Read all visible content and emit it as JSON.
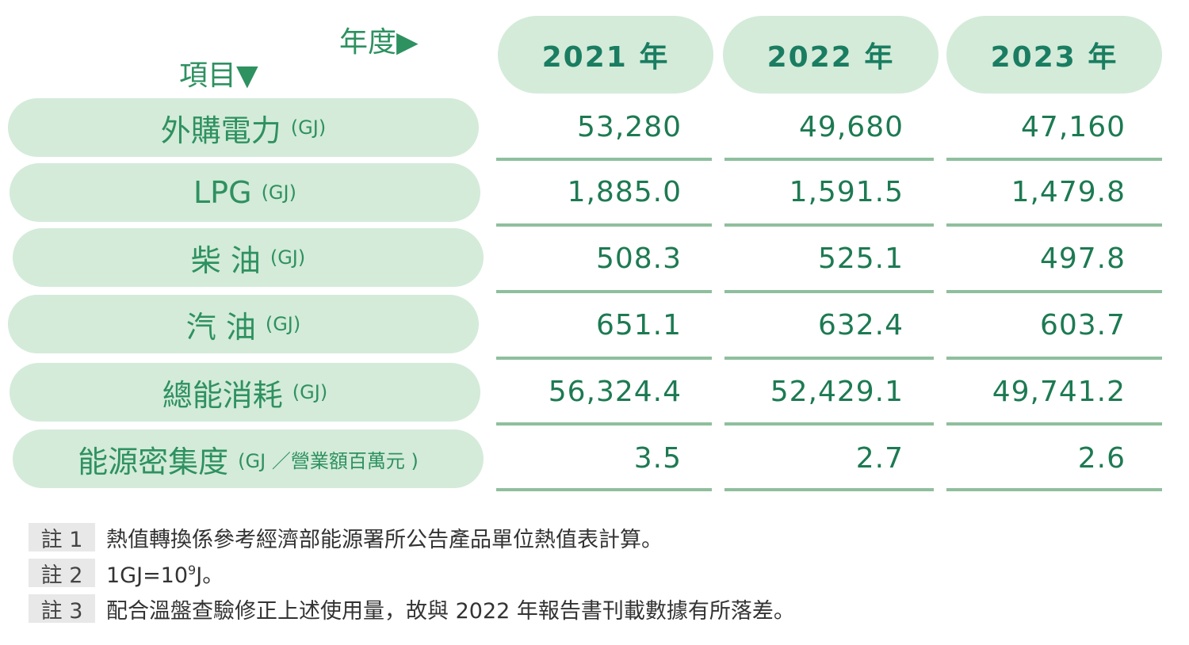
{
  "header": {
    "year_axis": "年度▶",
    "item_axis": "項目▼",
    "years": [
      "2021 年",
      "2022 年",
      "2023 年"
    ]
  },
  "rows": [
    {
      "label": "外購電力",
      "unit": "(GJ)",
      "values": [
        "53,280",
        "49,680",
        "47,160"
      ]
    },
    {
      "label": "LPG",
      "unit": "(GJ)",
      "values": [
        "1,885.0",
        "1,591.5",
        "1,479.8"
      ]
    },
    {
      "label": "柴 油",
      "unit": "(GJ)",
      "values": [
        "508.3",
        "525.1",
        "497.8"
      ]
    },
    {
      "label": "汽 油",
      "unit": "(GJ)",
      "values": [
        "651.1",
        "632.4",
        "603.7"
      ]
    },
    {
      "label": "總能消耗",
      "unit": "(GJ)",
      "values": [
        "56,324.4",
        "52,429.1",
        "49,741.2"
      ]
    },
    {
      "label": "能源密集度",
      "unit": "(GJ ／營業額百萬元 )",
      "values": [
        "3.5",
        "2.7",
        "2.6"
      ]
    }
  ],
  "notes": [
    {
      "tag": "註 1",
      "text": "熱值轉換係參考經濟部能源署所公告產品單位熱值表計算。"
    },
    {
      "tag": "註 2",
      "text_prefix": "1GJ=10",
      "sup": "9",
      "text_suffix": "J。"
    },
    {
      "tag": "註 3",
      "text": "配合溫盤查驗修正上述使用量，故與 2022 年報告書刊載數據有所落差。"
    }
  ],
  "colors": {
    "pill_bg": "#d4ebd9",
    "text_green": "#2e9160",
    "value_green": "#1d7a52",
    "rule": "#8fbf9d"
  }
}
